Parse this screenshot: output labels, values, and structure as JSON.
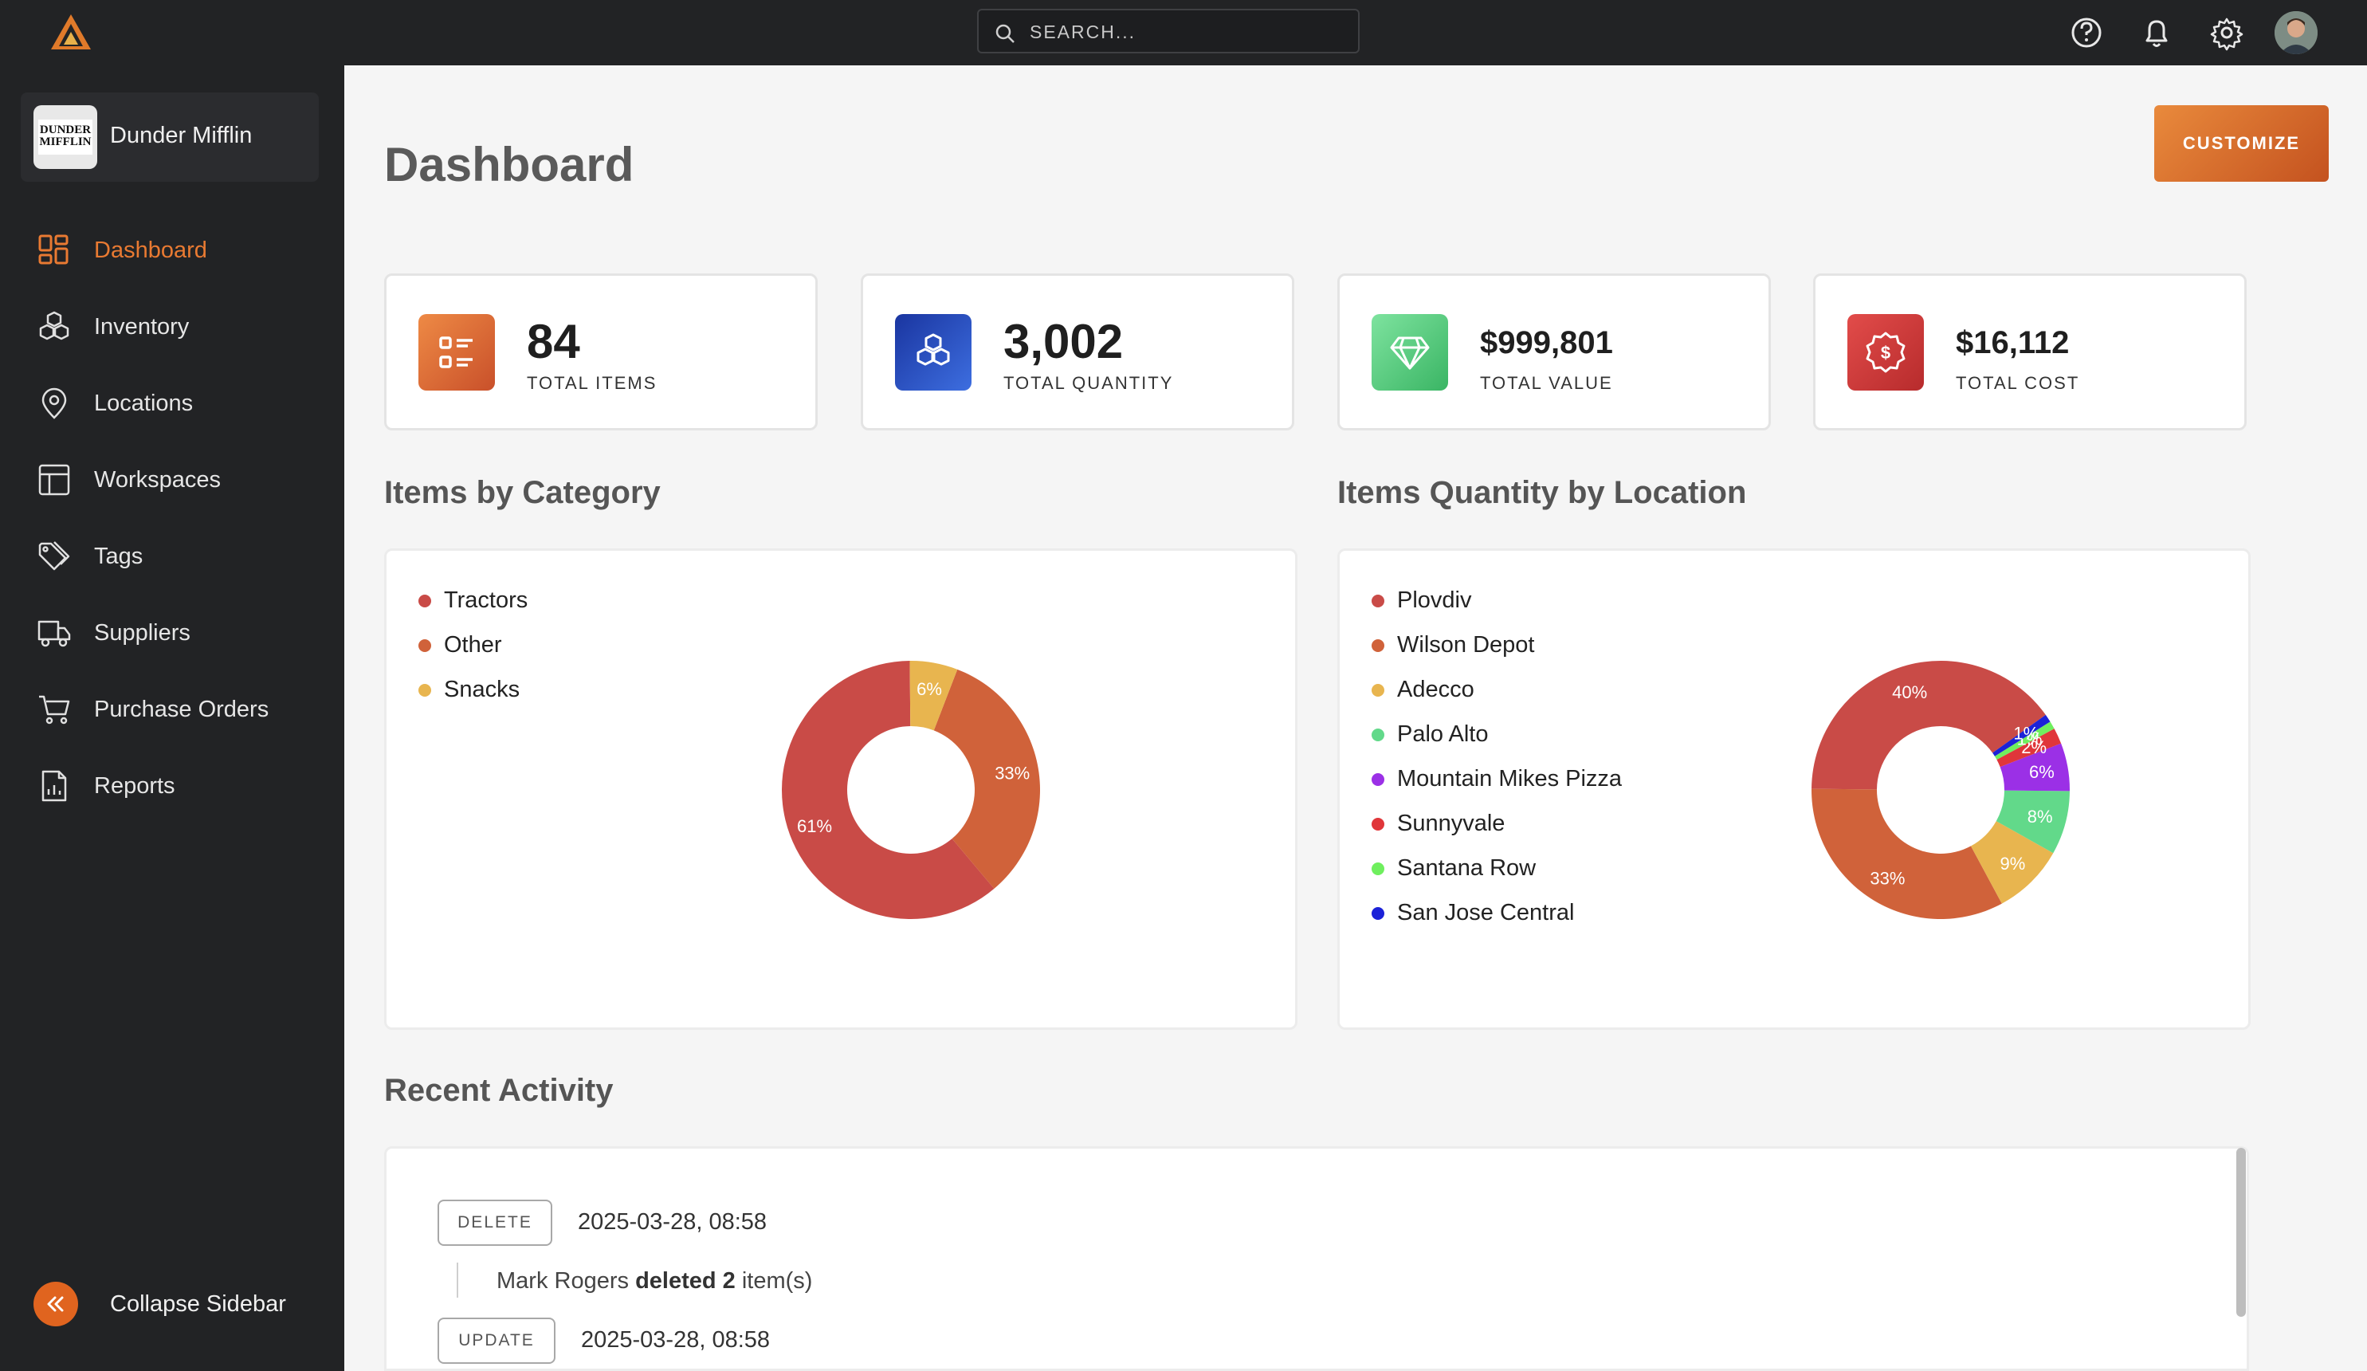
{
  "topbar": {
    "search_placeholder": "SEARCH...",
    "icons": [
      "help-icon",
      "bell-icon",
      "gear-icon",
      "avatar"
    ]
  },
  "sidebar": {
    "org_name": "Dunder Mifflin",
    "org_logo_text": "DUNDER MIFFLIN",
    "items": [
      {
        "label": "Dashboard",
        "icon": "dashboard-icon",
        "active": true
      },
      {
        "label": "Inventory",
        "icon": "boxes-icon"
      },
      {
        "label": "Locations",
        "icon": "map-pin-icon"
      },
      {
        "label": "Workspaces",
        "icon": "layout-icon"
      },
      {
        "label": "Tags",
        "icon": "tags-icon"
      },
      {
        "label": "Suppliers",
        "icon": "truck-icon"
      },
      {
        "label": "Purchase Orders",
        "icon": "cart-icon"
      },
      {
        "label": "Reports",
        "icon": "report-icon"
      }
    ],
    "collapse_label": "Collapse Sidebar"
  },
  "main": {
    "title": "Dashboard",
    "customize_label": "CUSTOMIZE",
    "stats": [
      {
        "value": "84",
        "label": "TOTAL ITEMS",
        "icon": "list-icon",
        "color": "#e0652a"
      },
      {
        "value": "3,002",
        "label": "TOTAL QUANTITY",
        "icon": "boxes-icon",
        "color": "#1d3fa8"
      },
      {
        "value": "$999,801",
        "label": "TOTAL VALUE",
        "icon": "diamond-icon",
        "color": "#4cc474"
      },
      {
        "value": "$16,112",
        "label": "TOTAL COST",
        "icon": "dollar-badge-icon",
        "color": "#d13d38"
      }
    ],
    "category_section_title": "Items by Category",
    "location_section_title": "Items Quantity by Location",
    "activity_section_title": "Recent Activity",
    "activity": [
      {
        "badge": "DELETE",
        "time": "2025-03-28, 08:58",
        "user": "Mark Rogers",
        "action": "deleted 2",
        "object": "item(s)"
      },
      {
        "badge": "UPDATE",
        "time": "2025-03-28, 08:58"
      }
    ]
  },
  "chart_data": [
    {
      "type": "pie",
      "title": "Items by Category",
      "categories": [
        "Tractors",
        "Other",
        "Snacks"
      ],
      "values": [
        61,
        33,
        6
      ],
      "labels": [
        "61%",
        "33%",
        "6%"
      ],
      "colors": [
        "#c94b47",
        "#d0623a",
        "#e8b54f"
      ],
      "legend": "top-left"
    },
    {
      "type": "pie",
      "title": "Items Quantity by Location",
      "categories": [
        "Plovdiv",
        "Wilson Depot",
        "Adecco",
        "Palo Alto",
        "Mountain Mikes Pizza",
        "Sunnyvale",
        "Santana Row",
        "San Jose Central"
      ],
      "values": [
        40,
        33,
        9,
        8,
        6,
        2,
        1,
        1
      ],
      "labels": [
        "40%",
        "33%",
        "9%",
        "8%",
        "6%",
        "2%",
        "1%",
        "1%"
      ],
      "colors": [
        "#c94b47",
        "#d0623a",
        "#e8b54f",
        "#62d98a",
        "#9b30e6",
        "#e0363a",
        "#6fef5e",
        "#1c22d8"
      ],
      "legend": "top-left"
    }
  ]
}
